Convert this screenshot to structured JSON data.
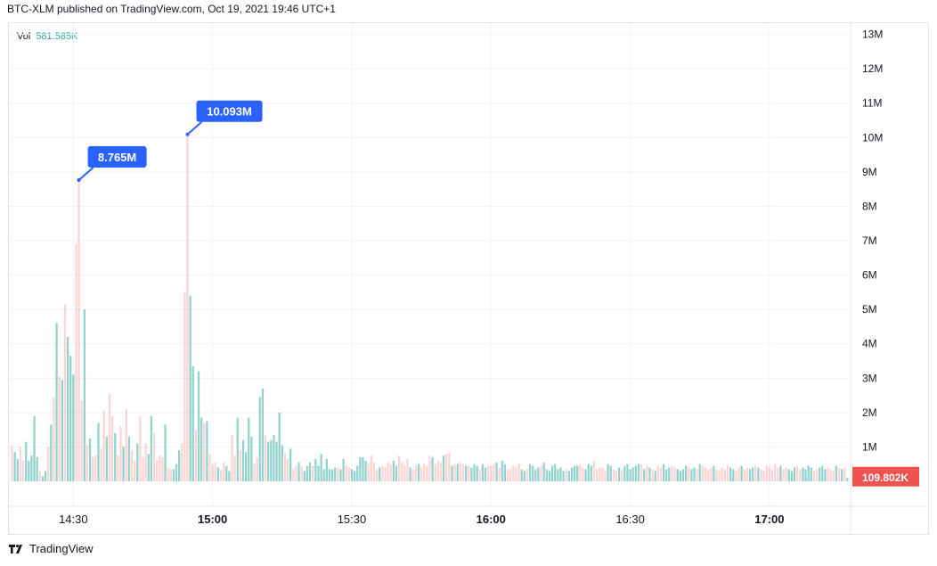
{
  "header": {
    "publish_text": "BTC-XLM published on TradingView.com, Oct 19, 2021 19:46 UTC+1"
  },
  "legend": {
    "label": "Vol",
    "value": "581.585K"
  },
  "footer": {
    "brand": "TradingView"
  },
  "colors": {
    "up": "#26a69a",
    "down": "#ef5350",
    "callout": "#2962ff",
    "grid": "#f0f3fa",
    "axis_text": "#131722"
  },
  "chart_data": {
    "type": "bar",
    "title": "",
    "xlabel": "",
    "ylabel": "",
    "ylim": [
      0,
      13
    ],
    "y_unit": "M",
    "y_ticks": [
      1,
      2,
      3,
      4,
      5,
      6,
      7,
      8,
      9,
      10,
      11,
      12,
      13
    ],
    "y_tick_labels": [
      "1M",
      "2M",
      "3M",
      "4M",
      "5M",
      "6M",
      "7M",
      "8M",
      "9M",
      "10M",
      "11M",
      "12M",
      "13M"
    ],
    "x_ticks": [
      {
        "label": "14:30",
        "index": 22,
        "bold": false
      },
      {
        "label": "15:00",
        "index": 72,
        "bold": true
      },
      {
        "label": "15:30",
        "index": 122,
        "bold": false
      },
      {
        "label": "16:00",
        "index": 172,
        "bold": true
      },
      {
        "label": "16:30",
        "index": 222,
        "bold": false
      },
      {
        "label": "17:00",
        "index": 272,
        "bold": true
      }
    ],
    "bar_minutes": 0.6,
    "values": [
      1.05,
      0.85,
      0.65,
      1.0,
      0.6,
      1.15,
      0.6,
      0.75,
      1.9,
      0.7,
      0.3,
      0.15,
      0.3,
      1.0,
      1.65,
      2.45,
      4.6,
      3.05,
      2.95,
      5.15,
      4.2,
      3.65,
      3.1,
      6.9,
      8.765,
      2.35,
      5.0,
      1.05,
      1.25,
      0.7,
      0.75,
      1.7,
      0.95,
      2.05,
      1.3,
      2.55,
      1.9,
      1.4,
      0.75,
      1.6,
      1.0,
      2.1,
      1.3,
      0.9,
      0.6,
      1.1,
      1.9,
      0.7,
      1.1,
      0.8,
      1.9,
      1.4,
      0.6,
      0.75,
      0.7,
      1.65,
      0.4,
      0.35,
      0.35,
      0.5,
      0.9,
      1.1,
      5.5,
      10.093,
      5.4,
      3.35,
      1.5,
      3.2,
      1.85,
      1.7,
      1.75,
      0.8,
      0.5,
      0.55,
      0.4,
      0.35,
      0.55,
      0.45,
      0.3,
      1.35,
      0.75,
      1.85,
      0.9,
      1.2,
      0.85,
      1.85,
      1.3,
      0.5,
      0.7,
      2.45,
      2.7,
      1.35,
      1.15,
      1.2,
      1.35,
      1.15,
      2.0,
      1.05,
      0.8,
      0.65,
      0.95,
      0.35,
      0.45,
      0.55,
      0.45,
      0.3,
      0.45,
      0.55,
      0.45,
      0.65,
      0.45,
      0.8,
      0.35,
      0.65,
      0.35,
      0.35,
      0.4,
      0.4,
      0.35,
      0.65,
      0.45,
      0.4,
      0.35,
      0.3,
      0.45,
      0.7,
      0.7,
      0.6,
      0.5,
      0.75,
      0.55,
      0.35,
      0.4,
      0.45,
      0.4,
      0.55,
      0.5,
      0.6,
      0.45,
      0.75,
      0.55,
      0.45,
      0.65,
      0.4,
      0.35,
      0.45,
      0.5,
      0.4,
      0.5,
      0.45,
      0.75,
      0.7,
      0.5,
      0.6,
      0.55,
      0.75,
      0.8,
      0.85,
      0.45,
      0.5,
      0.5,
      0.55,
      0.5,
      0.45,
      0.45,
      0.4,
      0.5,
      0.45,
      0.35,
      0.5,
      0.4,
      0.45,
      0.45,
      0.5,
      0.55,
      0.4,
      0.6,
      0.5,
      0.35,
      0.35,
      0.45,
      0.4,
      0.5,
      0.35,
      0.3,
      0.35,
      0.5,
      0.45,
      0.35,
      0.4,
      0.45,
      0.55,
      0.35,
      0.3,
      0.45,
      0.5,
      0.35,
      0.4,
      0.3,
      0.35,
      0.3,
      0.4,
      0.45,
      0.45,
      0.5,
      0.4,
      0.35,
      0.5,
      0.45,
      0.6,
      0.35,
      0.4,
      0.4,
      0.3,
      0.5,
      0.45,
      0.35,
      0.3,
      0.4,
      0.35,
      0.45,
      0.5,
      0.35,
      0.4,
      0.45,
      0.5,
      0.5,
      0.35,
      0.45,
      0.4,
      0.35,
      0.3,
      0.45,
      0.4,
      0.5,
      0.35,
      0.4,
      0.45,
      0.4,
      0.35,
      0.3,
      0.35,
      0.45,
      0.4,
      0.35,
      0.4,
      0.35,
      0.5,
      0.45,
      0.4,
      0.35,
      0.4,
      0.45,
      0.35,
      0.3,
      0.4,
      0.35,
      0.45,
      0.4,
      0.35,
      0.3,
      0.4,
      0.45,
      0.35,
      0.4,
      0.35,
      0.4,
      0.45,
      0.4,
      0.35,
      0.3,
      0.45,
      0.4,
      0.35,
      0.5,
      0.4,
      0.45,
      0.35,
      0.4,
      0.35,
      0.3,
      0.4,
      0.45,
      0.35,
      0.4,
      0.35,
      0.45,
      0.4,
      0.3,
      0.35,
      0.4,
      0.45,
      0.35,
      0.4,
      0.35,
      0.3,
      0.45,
      0.4,
      0.35,
      0.4,
      0.11
    ],
    "directions": "",
    "callouts": [
      {
        "label": "8.765M",
        "bar_index": 24,
        "value": 8.765
      },
      {
        "label": "10.093M",
        "bar_index": 63,
        "value": 10.093
      }
    ],
    "last_value_label": "109.802K",
    "last_value": 0.109802
  }
}
